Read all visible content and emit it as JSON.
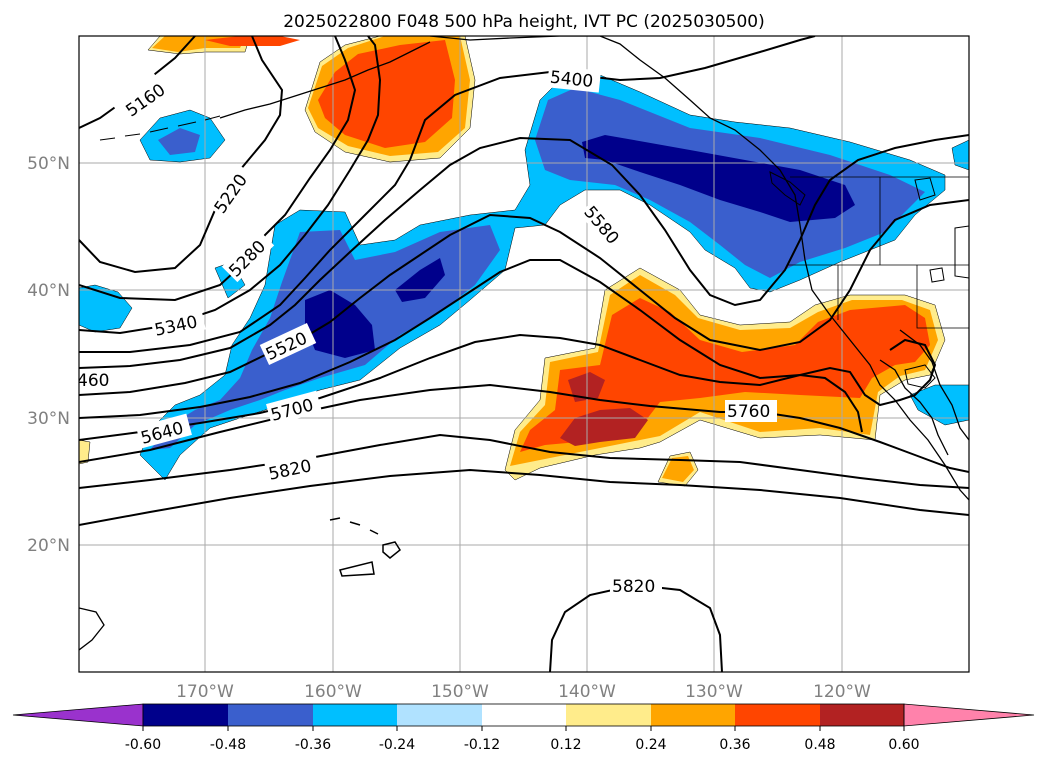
{
  "title": "2025022800 F048 500 hPa height, IVT PC (2025030500)",
  "map": {
    "lon_range": [
      -180,
      -110
    ],
    "lat_range": [
      10,
      60
    ],
    "lat_labels": [
      "20°N",
      "30°N",
      "40°N",
      "50°N"
    ],
    "lon_labels": [
      "170°W",
      "160°W",
      "150°W",
      "140°W",
      "130°W",
      "120°W"
    ],
    "gridline_color": "#aaaaaa",
    "tick_label_color": "#808080",
    "contour_labels": [
      "5160",
      "5220",
      "5280",
      "5340",
      "5400",
      "460",
      "5520",
      "5580",
      "5640",
      "5700",
      "5760",
      "5820",
      "5820"
    ]
  },
  "colorbar": {
    "ticks": [
      "-0.60",
      "-0.48",
      "-0.36",
      "-0.24",
      "-0.12",
      "0.12",
      "0.24",
      "0.36",
      "0.48",
      "0.60"
    ],
    "colors": [
      "#9a32cd",
      "#00008b",
      "#3a5fcd",
      "#00bfff",
      "#b0e2ff",
      "#ffffff",
      "#ffec8b",
      "#ffa500",
      "#ff4500",
      "#b22222",
      "#ff82ab"
    ]
  },
  "fill_colors": {
    "neg_light": "#00bfff",
    "neg_mid": "#3a5fcd",
    "neg_dark": "#00008b",
    "pos_light": "#ffec8b",
    "pos_mid": "#ffa500",
    "pos_strong": "#ff4500",
    "pos_dark": "#b22222"
  }
}
